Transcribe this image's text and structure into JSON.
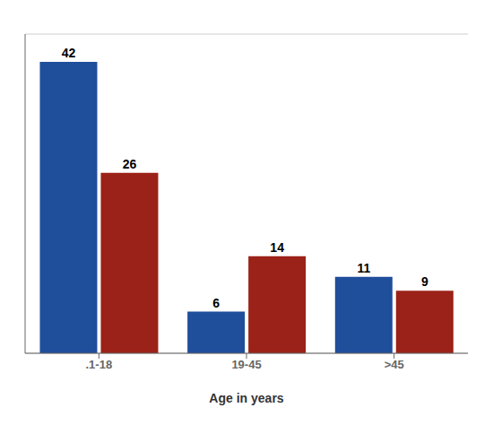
{
  "chart_data": {
    "type": "bar",
    "categories": [
      ".1-18",
      "19-45",
      ">45"
    ],
    "series": [
      {
        "color": "#1F4E9B",
        "values": [
          42,
          6,
          11
        ]
      },
      {
        "color": "#9B2218",
        "values": [
          26,
          14,
          9
        ]
      }
    ],
    "xlabel": "Age in years",
    "ylim": [
      0,
      46
    ],
    "yticks": [
      5,
      10,
      15,
      20,
      25,
      30,
      35,
      40,
      45
    ],
    "grid": true,
    "data_labels": true,
    "tick_labels": "x"
  }
}
